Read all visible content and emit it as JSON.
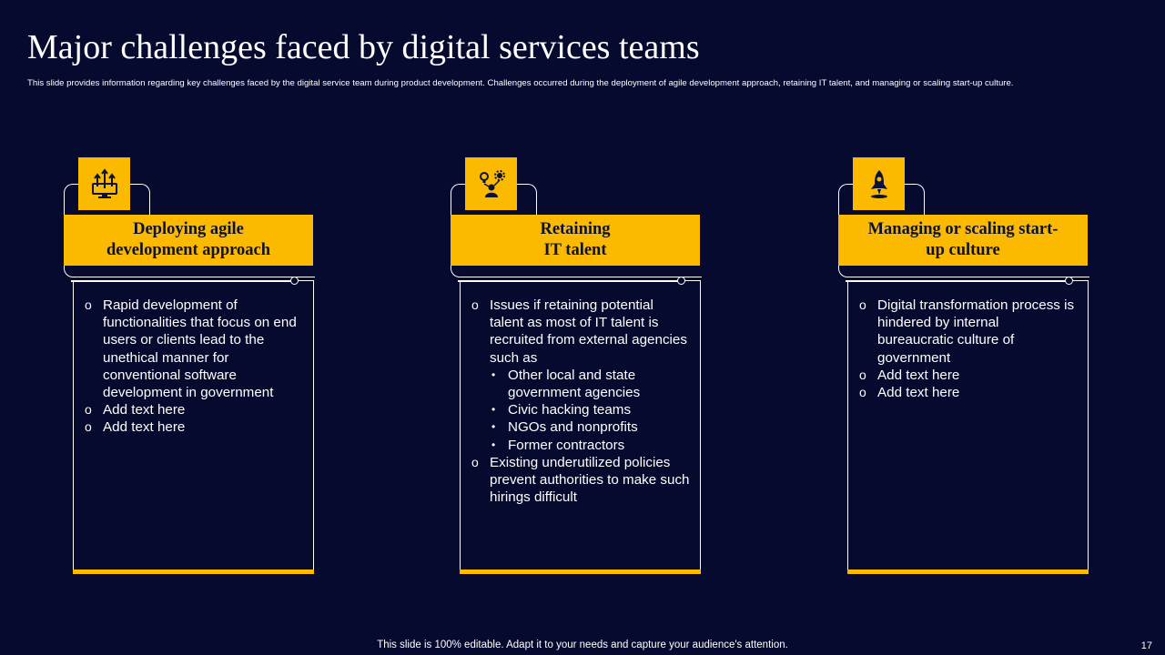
{
  "slide": {
    "title": "Major challenges faced by digital services teams",
    "subtitle": "This slide provides information regarding key challenges faced by the digital service team during product development. Challenges occurred during the deployment of agile development approach, retaining IT  talent, and managing  or scaling start-up culture.",
    "footer": "This slide is 100% editable. Adapt it to your needs and capture your audience's attention.",
    "page_number": "17"
  },
  "colors": {
    "background": "#050a2e",
    "accent": "#fbb900",
    "text": "#ffffff"
  },
  "cards": [
    {
      "icon": "monitor-arrows-icon",
      "heading_line1": "Deploying agile",
      "heading_line2": "development approach",
      "items": [
        "Rapid development of functionalities that focus on end users or clients lead to the unethical manner for conventional software development in government",
        "Add text here",
        "Add text here"
      ]
    },
    {
      "icon": "talent-gears-icon",
      "heading_line1": "Retaining",
      "heading_line2": "IT talent",
      "item1": "Issues if retaining potential talent as most of IT talent is recruited from external agencies such as",
      "subitems": [
        "Other local and state government  agencies",
        "Civic hacking teams",
        "NGOs and nonprofits",
        "Former contractors"
      ],
      "item2": "Existing underutilized policies prevent authorities to make such hirings difficult"
    },
    {
      "icon": "rocket-icon",
      "heading_line1": "Managing or scaling start-",
      "heading_line2": "up culture",
      "items": [
        "Digital transformation process is hindered by internal bureaucratic culture of government",
        "Add text here",
        "Add text here"
      ]
    }
  ]
}
